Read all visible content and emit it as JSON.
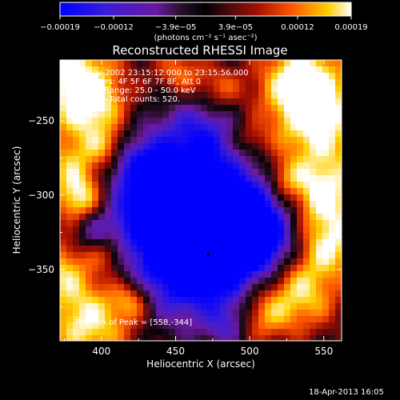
{
  "chart_data": {
    "type": "heatmap",
    "title": "Reconstructed RHESSI Image",
    "xlabel": "Heliocentric X (arcsec)",
    "ylabel": "Heliocentric Y (arcsec)",
    "xlim": [
      372,
      562
    ],
    "ylim": [
      -398,
      -209
    ],
    "xticks": [
      400,
      450,
      500,
      550
    ],
    "yticks": [
      -250,
      -300,
      -350
    ],
    "xtick_labels": [
      "400",
      "450",
      "500",
      "550"
    ],
    "ytick_labels": [
      "−250",
      "−300",
      "−350"
    ],
    "colorbar": {
      "min": -0.00019,
      "max": 0.00019,
      "ticks": [
        -0.00019,
        -0.00012,
        -3.9e-05,
        3.9e-05,
        0.00012,
        0.00019
      ],
      "tick_labels": [
        "−0.00019",
        "−0.00012",
        "−3.9e−05",
        "3.9e−05",
        "0.00012",
        "0.00019"
      ],
      "unit_label": "(photons cm⁻² s⁻¹ asec⁻²)",
      "colors": [
        "#0000ff",
        "#5b19b5",
        "#1a0a1a",
        "#5a0e1e",
        "#c41100",
        "#ff6a00",
        "#ffd200",
        "#ffffff"
      ]
    },
    "annotations": [
      "23-Nov-2002 23:15:12.000 to 23:15:56.000",
      "Detectors: 4F 5F 6F 7F 8F, Att 0",
      "Energy Range: 25.0 - 50.0 keV",
      "Clean     Total counts: 520."
    ],
    "peak_label": "Position of Peak = [558,-344]",
    "marker": {
      "x": 472,
      "y": -340
    }
  },
  "footer": {
    "timestamp": "18-Apr-2013 16:05"
  }
}
